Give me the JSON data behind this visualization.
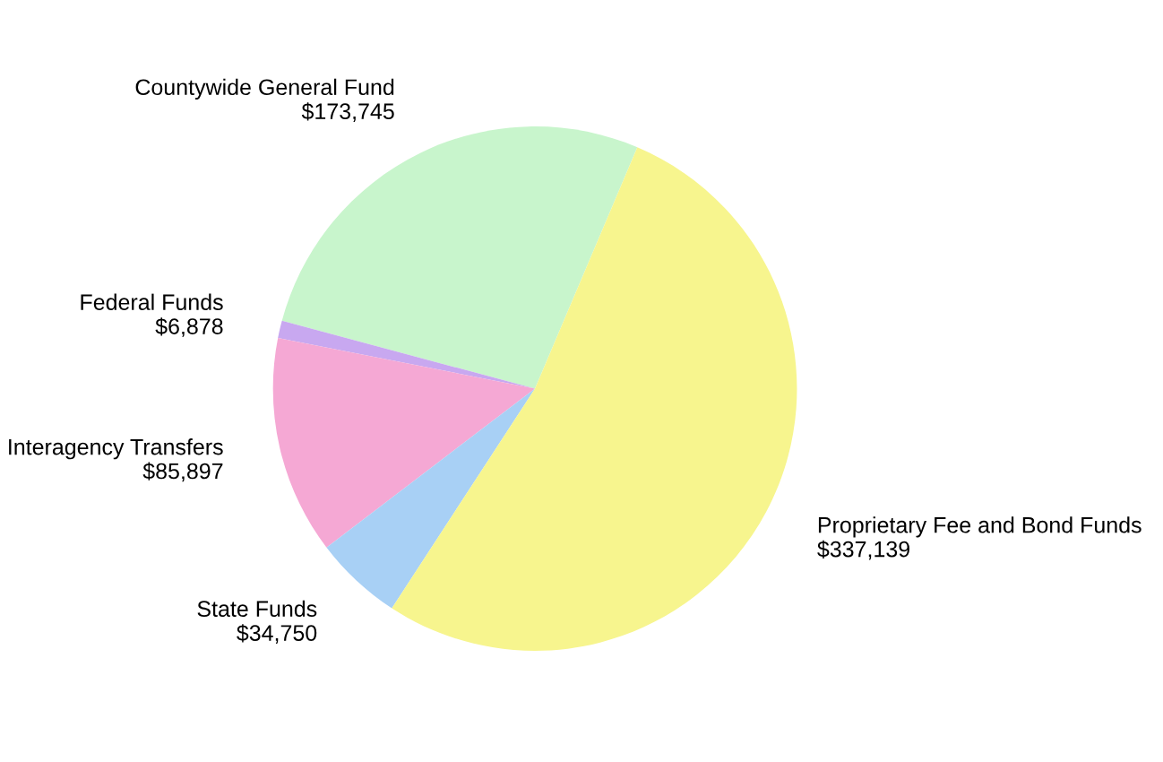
{
  "chart_data": {
    "type": "pie",
    "categories": [
      "Countywide General Fund",
      "Federal Funds",
      "Interagency Transfers",
      "State Funds",
      "Proprietary Fee and Bond Funds"
    ],
    "values": [
      173745,
      6878,
      85897,
      34750,
      337139
    ],
    "value_labels": [
      "$173,745",
      "$6,878",
      "$85,897",
      "$34,750",
      "$337,139"
    ],
    "colors": [
      "#c8f5cc",
      "#c8a8f0",
      "#f5a8d4",
      "#a8d0f5",
      "#f7f58e"
    ]
  }
}
